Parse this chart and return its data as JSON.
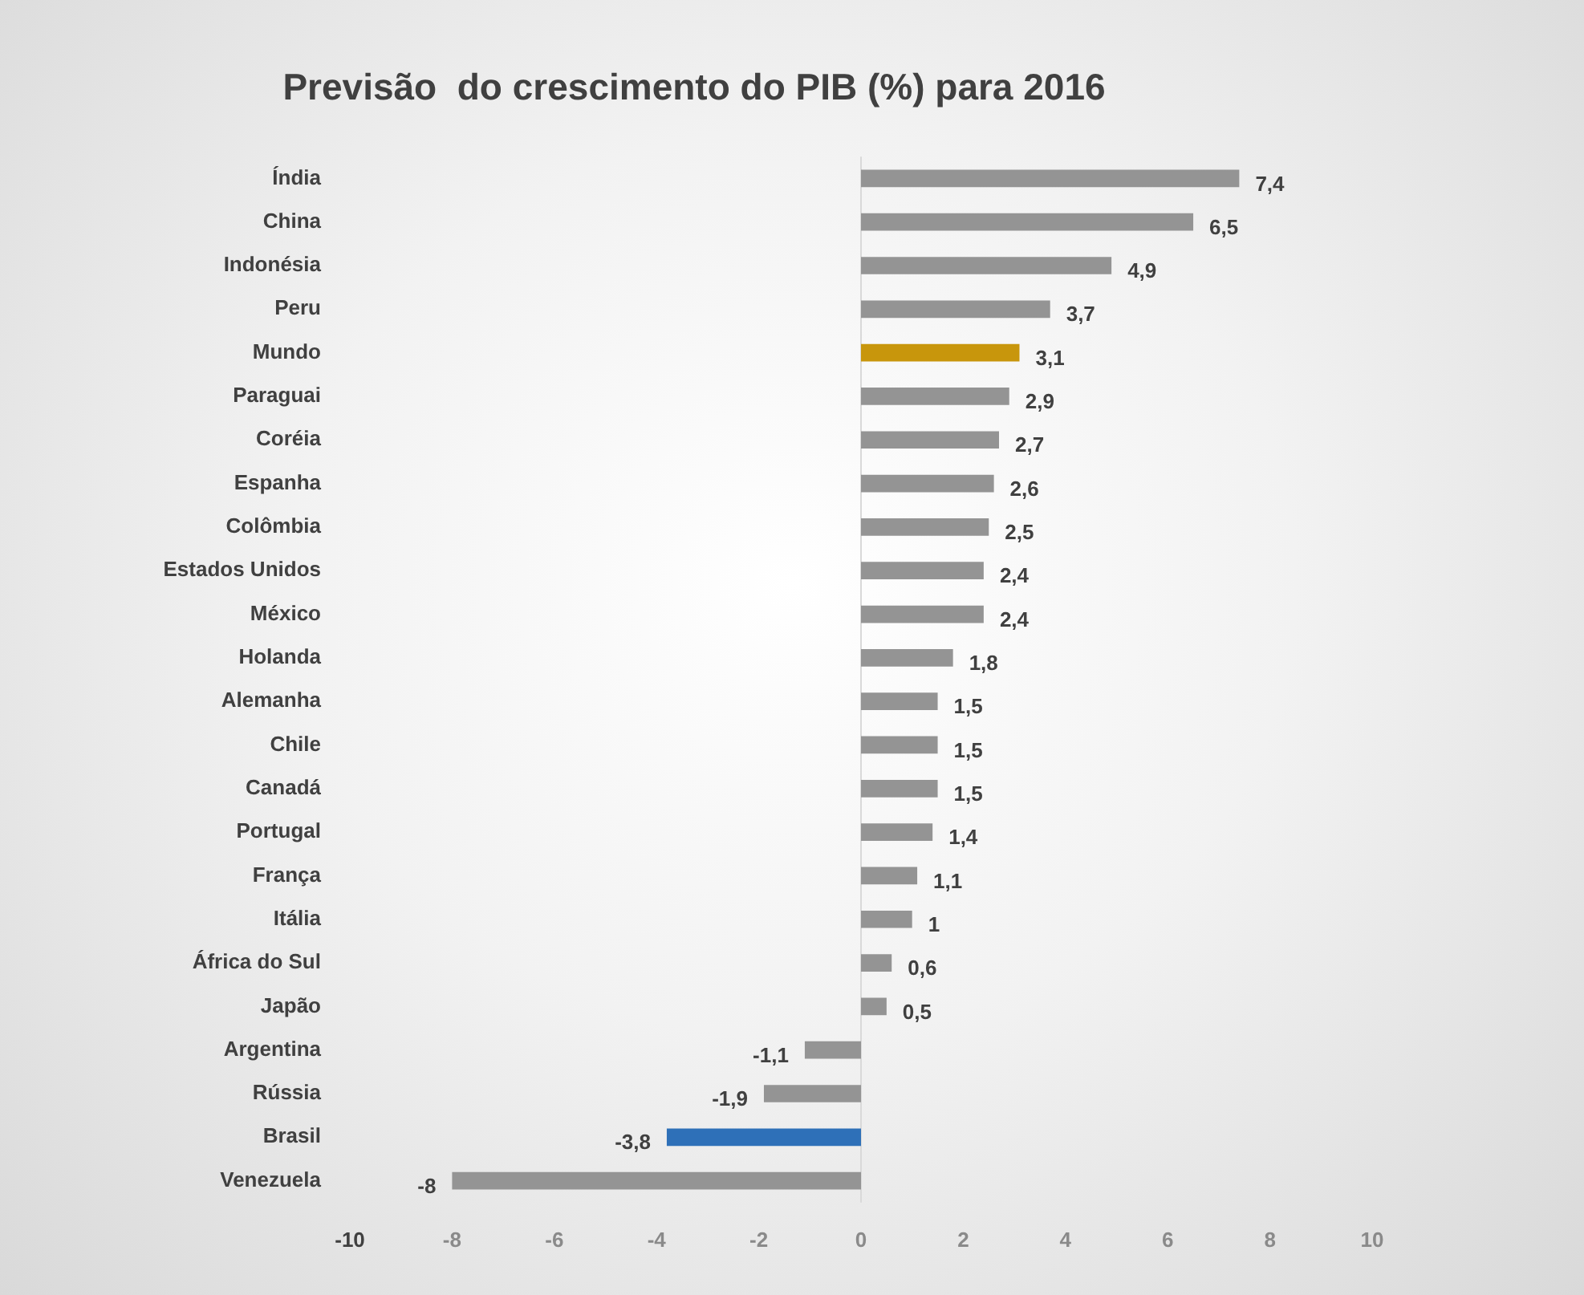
{
  "chart_data": {
    "type": "bar",
    "orientation": "horizontal",
    "title": "Previsão  do crescimento do PIB (%) para 2016",
    "categories": [
      "Índia",
      "China",
      "Indonésia",
      "Peru",
      "Mundo",
      "Paraguai",
      "Coréia",
      "Espanha",
      "Colômbia",
      "Estados Unidos",
      "México",
      "Holanda",
      "Alemanha",
      "Chile",
      "Canadá",
      "Portugal",
      "França",
      "Itália",
      "África do Sul",
      "Japão",
      "Argentina",
      "Rússia",
      "Brasil",
      "Venezuela"
    ],
    "values": [
      7.4,
      6.5,
      4.9,
      3.7,
      3.1,
      2.9,
      2.7,
      2.6,
      2.5,
      2.4,
      2.4,
      1.8,
      1.5,
      1.5,
      1.5,
      1.4,
      1.1,
      1,
      0.6,
      0.5,
      -1.1,
      -1.9,
      -3.8,
      -8
    ],
    "value_labels": [
      "7,4",
      "6,5",
      "4,9",
      "3,7",
      "3,1",
      "2,9",
      "2,7",
      "2,6",
      "2,5",
      "2,4",
      "2,4",
      "1,8",
      "1,5",
      "1,5",
      "1,5",
      "1,4",
      "1,1",
      "1",
      "0,6",
      "0,5",
      "-1,1",
      "-1,9",
      "-3,8",
      "-8"
    ],
    "colors": [
      "#949494",
      "#949494",
      "#949494",
      "#949494",
      "#c8960c",
      "#949494",
      "#949494",
      "#949494",
      "#949494",
      "#949494",
      "#949494",
      "#949494",
      "#949494",
      "#949494",
      "#949494",
      "#949494",
      "#949494",
      "#949494",
      "#949494",
      "#949494",
      "#949494",
      "#949494",
      "#2e70b8",
      "#949494"
    ],
    "xlim": [
      -10,
      10
    ],
    "xticks": [
      -10,
      -8,
      -6,
      -4,
      -2,
      0,
      2,
      4,
      6,
      8,
      10
    ],
    "grid": false,
    "legend": false,
    "ref_lines": [
      {
        "axis": "x",
        "value": 0,
        "color": "#d9d9d9"
      }
    ]
  }
}
